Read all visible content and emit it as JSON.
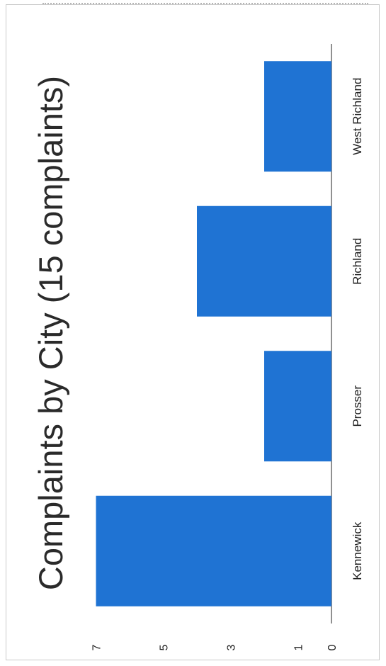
{
  "chart_data": {
    "type": "bar",
    "orientation": "rotated-90-ccw",
    "title": "Complaints by City (15 complaints)",
    "xlabel": "",
    "ylabel": "",
    "categories": [
      "Kennewick",
      "Prosser",
      "Richland",
      "West Richland"
    ],
    "values": [
      7,
      2,
      4,
      2
    ],
    "ylim": [
      0,
      7
    ],
    "yticks": [
      "0",
      "1",
      "3",
      "5",
      "7"
    ],
    "grid": false,
    "legend": "none",
    "bar_color": "#1f73d3"
  }
}
